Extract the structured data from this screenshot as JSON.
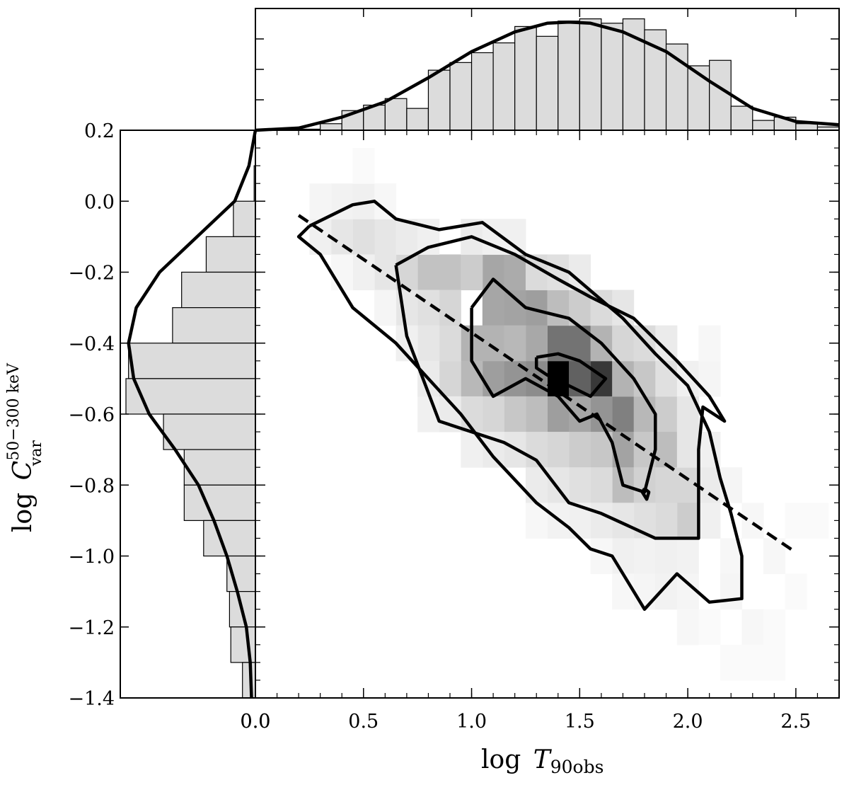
{
  "chart_data": {
    "type": "scatter-density-with-marginals",
    "x_axis": {
      "label_main": "log",
      "label_var": "T",
      "label_sub": "90obs",
      "range": [
        0.0,
        2.7
      ],
      "ticks": [
        0.0,
        0.5,
        1.0,
        1.5,
        2.0,
        2.5
      ],
      "tick_labels": [
        "0.0",
        "0.5",
        "1.0",
        "1.5",
        "2.0",
        "2.5"
      ]
    },
    "y_axis": {
      "label_main": "log",
      "label_var": "C",
      "label_sub": "var",
      "label_sup": "50−300 keV",
      "range": [
        -1.4,
        0.2
      ],
      "ticks": [
        0.2,
        0.0,
        -0.2,
        -0.4,
        -0.6,
        -0.8,
        -1.0,
        -1.2,
        -1.4
      ],
      "tick_labels": [
        "0.2",
        "0.0",
        "−0.2",
        "−0.4",
        "−0.6",
        "−0.8",
        "−1.0",
        "−1.2",
        "−1.4"
      ]
    },
    "fit_line": {
      "style": "dashed",
      "x": [
        0.2,
        2.5
      ],
      "y": [
        -0.04,
        -0.99
      ]
    },
    "density_cells": [
      {
        "x": 1.4,
        "y": -0.5,
        "v": 1.0
      },
      {
        "x": 1.6,
        "y": -0.5,
        "v": 0.78
      },
      {
        "x": 1.5,
        "y": -0.5,
        "v": 0.62
      },
      {
        "x": 1.5,
        "y": -0.4,
        "v": 0.55
      },
      {
        "x": 1.4,
        "y": -0.4,
        "v": 0.55
      },
      {
        "x": 1.3,
        "y": -0.5,
        "v": 0.45
      },
      {
        "x": 1.7,
        "y": -0.6,
        "v": 0.5
      },
      {
        "x": 1.2,
        "y": -0.5,
        "v": 0.42
      },
      {
        "x": 1.6,
        "y": -0.6,
        "v": 0.42
      },
      {
        "x": 1.3,
        "y": -0.3,
        "v": 0.38
      },
      {
        "x": 1.1,
        "y": -0.5,
        "v": 0.38
      },
      {
        "x": 1.2,
        "y": -0.3,
        "v": 0.36
      },
      {
        "x": 1.1,
        "y": -0.3,
        "v": 0.35
      },
      {
        "x": 1.1,
        "y": -0.2,
        "v": 0.35
      },
      {
        "x": 1.2,
        "y": -0.2,
        "v": 0.33
      },
      {
        "x": 1.3,
        "y": -0.4,
        "v": 0.34
      },
      {
        "x": 1.4,
        "y": -0.6,
        "v": 0.38
      },
      {
        "x": 1.5,
        "y": -0.6,
        "v": 0.35
      },
      {
        "x": 1.7,
        "y": -0.7,
        "v": 0.36
      },
      {
        "x": 1.6,
        "y": -0.4,
        "v": 0.3
      },
      {
        "x": 1.7,
        "y": -0.5,
        "v": 0.3
      },
      {
        "x": 1.8,
        "y": -0.6,
        "v": 0.28
      },
      {
        "x": 1.0,
        "y": -0.4,
        "v": 0.3
      },
      {
        "x": 1.1,
        "y": -0.4,
        "v": 0.3
      },
      {
        "x": 1.0,
        "y": -0.5,
        "v": 0.28
      },
      {
        "x": 1.2,
        "y": -0.4,
        "v": 0.28
      },
      {
        "x": 0.9,
        "y": -0.2,
        "v": 0.24
      },
      {
        "x": 0.8,
        "y": -0.2,
        "v": 0.24
      },
      {
        "x": 1.0,
        "y": -0.2,
        "v": 0.2
      },
      {
        "x": 1.4,
        "y": -0.3,
        "v": 0.26
      },
      {
        "x": 1.5,
        "y": -0.3,
        "v": 0.2
      },
      {
        "x": 1.3,
        "y": -0.6,
        "v": 0.26
      },
      {
        "x": 1.2,
        "y": -0.6,
        "v": 0.22
      },
      {
        "x": 1.8,
        "y": -0.5,
        "v": 0.22
      },
      {
        "x": 1.9,
        "y": -0.6,
        "v": 0.2
      },
      {
        "x": 1.9,
        "y": -0.7,
        "v": 0.26
      },
      {
        "x": 1.8,
        "y": -0.7,
        "v": 0.22
      },
      {
        "x": 1.6,
        "y": -0.7,
        "v": 0.22
      },
      {
        "x": 1.5,
        "y": -0.7,
        "v": 0.2
      },
      {
        "x": 1.7,
        "y": -0.8,
        "v": 0.26
      },
      {
        "x": 1.8,
        "y": -0.8,
        "v": 0.18
      },
      {
        "x": 1.9,
        "y": -0.8,
        "v": 0.16
      },
      {
        "x": 2.0,
        "y": -0.8,
        "v": 0.16
      },
      {
        "x": 2.0,
        "y": -0.9,
        "v": 0.2
      },
      {
        "x": 1.9,
        "y": -0.9,
        "v": 0.14
      },
      {
        "x": 1.8,
        "y": -0.9,
        "v": 0.12
      },
      {
        "x": 1.7,
        "y": -0.9,
        "v": 0.1
      },
      {
        "x": 1.6,
        "y": -0.8,
        "v": 0.14
      },
      {
        "x": 1.4,
        "y": -0.7,
        "v": 0.16
      },
      {
        "x": 1.3,
        "y": -0.7,
        "v": 0.14
      },
      {
        "x": 1.1,
        "y": -0.6,
        "v": 0.16
      },
      {
        "x": 1.0,
        "y": -0.6,
        "v": 0.14
      },
      {
        "x": 0.9,
        "y": -0.5,
        "v": 0.16
      },
      {
        "x": 0.9,
        "y": -0.4,
        "v": 0.14
      },
      {
        "x": 0.9,
        "y": -0.3,
        "v": 0.16
      },
      {
        "x": 0.8,
        "y": -0.3,
        "v": 0.12
      },
      {
        "x": 0.7,
        "y": -0.2,
        "v": 0.16
      },
      {
        "x": 0.6,
        "y": -0.1,
        "v": 0.1
      },
      {
        "x": 0.5,
        "y": -0.1,
        "v": 0.12
      },
      {
        "x": 0.4,
        "y": -0.1,
        "v": 0.1
      },
      {
        "x": 0.3,
        "y": -0.1,
        "v": 0.06
      },
      {
        "x": 0.4,
        "y": 0.0,
        "v": 0.05
      },
      {
        "x": 0.5,
        "y": 0.0,
        "v": 0.06
      },
      {
        "x": 0.3,
        "y": 0.0,
        "v": 0.04
      },
      {
        "x": 0.6,
        "y": -0.2,
        "v": 0.1
      },
      {
        "x": 0.5,
        "y": -0.2,
        "v": 0.06
      },
      {
        "x": 0.7,
        "y": -0.3,
        "v": 0.1
      },
      {
        "x": 0.8,
        "y": -0.4,
        "v": 0.1
      },
      {
        "x": 0.7,
        "y": -0.1,
        "v": 0.08
      },
      {
        "x": 0.8,
        "y": -0.1,
        "v": 0.06
      },
      {
        "x": 1.0,
        "y": -0.1,
        "v": 0.08
      },
      {
        "x": 1.1,
        "y": -0.1,
        "v": 0.06
      },
      {
        "x": 1.2,
        "y": -0.1,
        "v": 0.06
      },
      {
        "x": 1.3,
        "y": -0.2,
        "v": 0.14
      },
      {
        "x": 1.4,
        "y": -0.2,
        "v": 0.12
      },
      {
        "x": 1.5,
        "y": -0.2,
        "v": 0.08
      },
      {
        "x": 1.6,
        "y": -0.3,
        "v": 0.14
      },
      {
        "x": 1.7,
        "y": -0.3,
        "v": 0.1
      },
      {
        "x": 1.7,
        "y": -0.4,
        "v": 0.16
      },
      {
        "x": 1.8,
        "y": -0.4,
        "v": 0.14
      },
      {
        "x": 1.9,
        "y": -0.4,
        "v": 0.08
      },
      {
        "x": 1.9,
        "y": -0.5,
        "v": 0.12
      },
      {
        "x": 2.0,
        "y": -0.5,
        "v": 0.06
      },
      {
        "x": 2.0,
        "y": -0.6,
        "v": 0.1
      },
      {
        "x": 2.0,
        "y": -0.7,
        "v": 0.1
      },
      {
        "x": 2.1,
        "y": -0.7,
        "v": 0.06
      },
      {
        "x": 2.1,
        "y": -0.8,
        "v": 0.08
      },
      {
        "x": 2.1,
        "y": -0.9,
        "v": 0.06
      },
      {
        "x": 1.5,
        "y": -0.8,
        "v": 0.12
      },
      {
        "x": 1.4,
        "y": -0.8,
        "v": 0.1
      },
      {
        "x": 1.3,
        "y": -0.8,
        "v": 0.08
      },
      {
        "x": 1.2,
        "y": -0.7,
        "v": 0.1
      },
      {
        "x": 1.1,
        "y": -0.7,
        "v": 0.08
      },
      {
        "x": 1.0,
        "y": -0.7,
        "v": 0.06
      },
      {
        "x": 0.9,
        "y": -0.6,
        "v": 0.08
      },
      {
        "x": 0.8,
        "y": -0.6,
        "v": 0.06
      },
      {
        "x": 0.8,
        "y": -0.5,
        "v": 0.08
      },
      {
        "x": 0.7,
        "y": -0.4,
        "v": 0.06
      },
      {
        "x": 1.6,
        "y": -0.9,
        "v": 0.08
      },
      {
        "x": 1.5,
        "y": -0.9,
        "v": 0.06
      },
      {
        "x": 1.4,
        "y": -0.9,
        "v": 0.05
      },
      {
        "x": 1.7,
        "y": -1.0,
        "v": 0.06
      },
      {
        "x": 1.8,
        "y": -1.0,
        "v": 0.05
      },
      {
        "x": 1.9,
        "y": -1.0,
        "v": 0.06
      },
      {
        "x": 2.0,
        "y": -1.0,
        "v": 0.05
      },
      {
        "x": 1.8,
        "y": -1.1,
        "v": 0.04
      },
      {
        "x": 1.9,
        "y": -1.1,
        "v": 0.05
      },
      {
        "x": 2.0,
        "y": -1.1,
        "v": 0.04
      },
      {
        "x": 2.2,
        "y": -1.0,
        "v": 0.03
      },
      {
        "x": 2.2,
        "y": -1.1,
        "v": 0.04
      },
      {
        "x": 2.3,
        "y": -1.2,
        "v": 0.03
      },
      {
        "x": 2.2,
        "y": -0.8,
        "v": 0.04
      },
      {
        "x": 2.3,
        "y": -0.9,
        "v": 0.03
      },
      {
        "x": 2.4,
        "y": -1.0,
        "v": 0.03
      },
      {
        "x": 2.5,
        "y": -1.1,
        "v": 0.02
      },
      {
        "x": 2.1,
        "y": -0.5,
        "v": 0.04
      },
      {
        "x": 2.1,
        "y": -0.4,
        "v": 0.03
      },
      {
        "x": 1.7,
        "y": -1.1,
        "v": 0.03
      },
      {
        "x": 1.6,
        "y": -1.0,
        "v": 0.03
      },
      {
        "x": 1.3,
        "y": -0.9,
        "v": 0.03
      },
      {
        "x": 2.0,
        "y": -1.2,
        "v": 0.03
      },
      {
        "x": 2.1,
        "y": -1.2,
        "v": 0.02
      },
      {
        "x": 2.2,
        "y": -1.3,
        "v": 0.02
      },
      {
        "x": 2.3,
        "y": -1.3,
        "v": 0.02
      },
      {
        "x": 2.4,
        "y": -1.2,
        "v": 0.02
      },
      {
        "x": 2.5,
        "y": -0.9,
        "v": 0.02
      },
      {
        "x": 2.6,
        "y": -0.9,
        "v": 0.02
      },
      {
        "x": 2.4,
        "y": -1.3,
        "v": 0.02
      },
      {
        "x": 0.6,
        "y": -0.3,
        "v": 0.04
      },
      {
        "x": 0.4,
        "y": -0.2,
        "v": 0.03
      },
      {
        "x": 0.6,
        "y": 0.0,
        "v": 0.03
      },
      {
        "x": 0.5,
        "y": 0.1,
        "v": 0.02
      }
    ],
    "contours": [
      {
        "level": "outer",
        "x": [
          0.25,
          0.45,
          0.55,
          0.65,
          0.85,
          1.05,
          1.25,
          1.45,
          1.7,
          1.85,
          2.0,
          2.1,
          2.15,
          2.2,
          2.25,
          2.25,
          2.1,
          1.95,
          1.8,
          1.65,
          1.55,
          1.45,
          1.3,
          1.1,
          0.95,
          0.8,
          0.65,
          0.45,
          0.3,
          0.2,
          0.25
        ],
        "y": [
          -0.07,
          -0.01,
          0.0,
          -0.05,
          -0.08,
          -0.06,
          -0.15,
          -0.2,
          -0.33,
          -0.43,
          -0.52,
          -0.65,
          -0.78,
          -0.88,
          -1.0,
          -1.12,
          -1.13,
          -1.05,
          -1.15,
          -1.0,
          -0.98,
          -0.92,
          -0.85,
          -0.72,
          -0.6,
          -0.5,
          -0.4,
          -0.3,
          -0.15,
          -0.1,
          -0.07
        ]
      },
      {
        "level": "2",
        "x": [
          0.65,
          0.8,
          1.0,
          1.2,
          1.4,
          1.55,
          1.75,
          1.95,
          2.1,
          2.17,
          2.07,
          2.05,
          2.05,
          1.85,
          1.6,
          1.45,
          1.3,
          1.15,
          1.0,
          0.85,
          0.7,
          0.65
        ],
        "y": [
          -0.18,
          -0.13,
          -0.1,
          -0.15,
          -0.22,
          -0.27,
          -0.33,
          -0.45,
          -0.55,
          -0.62,
          -0.58,
          -0.7,
          -0.95,
          -0.95,
          -0.88,
          -0.85,
          -0.73,
          -0.68,
          -0.65,
          -0.62,
          -0.38,
          -0.18
        ]
      },
      {
        "level": "3",
        "x": [
          1.0,
          1.1,
          1.25,
          1.45,
          1.6,
          1.75,
          1.85,
          1.85,
          1.8,
          1.7,
          1.65,
          1.58,
          1.5,
          1.4,
          1.25,
          1.1,
          1.0,
          1.0
        ],
        "y": [
          -0.3,
          -0.22,
          -0.3,
          -0.33,
          -0.4,
          -0.5,
          -0.6,
          -0.7,
          -0.82,
          -0.8,
          -0.68,
          -0.6,
          -0.62,
          -0.55,
          -0.5,
          -0.55,
          -0.45,
          -0.3
        ]
      },
      {
        "level": "inner",
        "x": [
          1.3,
          1.4,
          1.5,
          1.62,
          1.55,
          1.45,
          1.35,
          1.3,
          1.3
        ],
        "y": [
          -0.44,
          -0.43,
          -0.45,
          -0.5,
          -0.55,
          -0.52,
          -0.49,
          -0.47,
          -0.44
        ]
      },
      {
        "level": "blob",
        "x": [
          1.8,
          1.82,
          1.81,
          1.79,
          1.8
        ],
        "y": [
          -0.81,
          -0.82,
          -0.84,
          -0.82,
          -0.81
        ]
      }
    ],
    "top_histogram": {
      "bin_edges": [
        0.0,
        0.1,
        0.2,
        0.3,
        0.4,
        0.5,
        0.6,
        0.7,
        0.8,
        0.9,
        1.0,
        1.1,
        1.2,
        1.3,
        1.4,
        1.5,
        1.6,
        1.7,
        1.8,
        1.9,
        2.0,
        2.1,
        2.2,
        2.3,
        2.4,
        2.5,
        2.6,
        2.7
      ],
      "counts": [
        0.0,
        0.0,
        0.01,
        0.06,
        0.18,
        0.23,
        0.29,
        0.2,
        0.55,
        0.62,
        0.71,
        0.8,
        0.95,
        0.86,
        1.0,
        1.02,
        0.98,
        1.02,
        0.92,
        0.79,
        0.59,
        0.64,
        0.22,
        0.09,
        0.12,
        0.06,
        0.03
      ],
      "curve_x": [
        0.0,
        0.2,
        0.4,
        0.6,
        0.8,
        1.0,
        1.2,
        1.35,
        1.45,
        1.55,
        1.7,
        1.9,
        2.1,
        2.3,
        2.5,
        2.7
      ],
      "curve_y": [
        0.0,
        0.02,
        0.12,
        0.26,
        0.48,
        0.72,
        0.9,
        0.98,
        0.99,
        0.98,
        0.9,
        0.72,
        0.45,
        0.2,
        0.08,
        0.05
      ]
    },
    "left_histogram": {
      "bin_edges": [
        0.2,
        0.1,
        0.0,
        -0.1,
        -0.2,
        -0.3,
        -0.4,
        -0.5,
        -0.6,
        -0.7,
        -0.8,
        -0.9,
        -1.0,
        -1.1,
        -1.2,
        -1.3,
        -1.4
      ],
      "counts": [
        0.0,
        0.01,
        0.17,
        0.38,
        0.57,
        0.64,
        0.98,
        1.0,
        0.71,
        0.55,
        0.55,
        0.4,
        0.22,
        0.2,
        0.19,
        0.1
      ],
      "curve_y": [
        0.2,
        0.1,
        0.0,
        -0.1,
        -0.2,
        -0.3,
        -0.4,
        -0.5,
        -0.6,
        -0.7,
        -0.8,
        -0.9,
        -1.0,
        -1.1,
        -1.2,
        -1.3,
        -1.4
      ],
      "curve_v": [
        0.0,
        0.05,
        0.16,
        0.45,
        0.74,
        0.92,
        0.98,
        0.94,
        0.82,
        0.62,
        0.44,
        0.32,
        0.22,
        0.14,
        0.07,
        0.04,
        0.03
      ]
    }
  }
}
